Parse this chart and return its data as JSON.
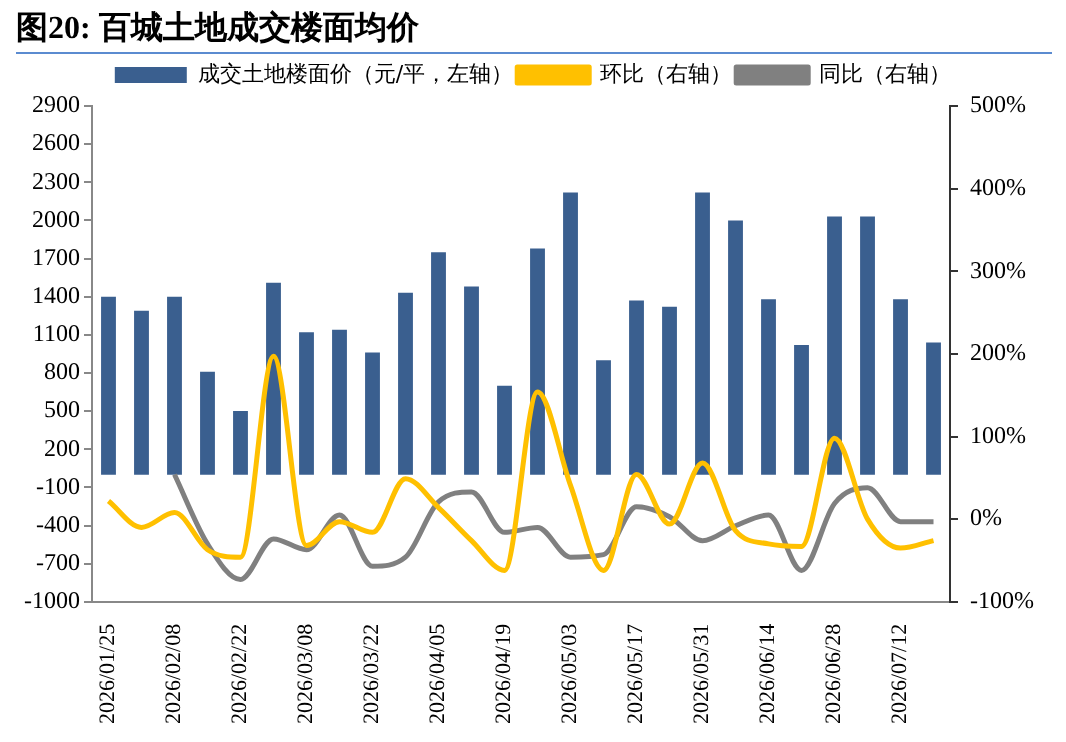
{
  "chart_data": {
    "type": "bar",
    "title": "图20: 百城土地成交楼面均价",
    "categories": [
      "2026/01/25",
      null,
      "2026/02/08",
      null,
      "2026/02/22",
      null,
      "2026/03/08",
      null,
      "2026/03/22",
      null,
      "2026/04/05",
      null,
      "2026/04/19",
      null,
      "2026/05/03",
      null,
      "2026/05/17",
      null,
      "2026/05/31",
      null,
      "2026/06/14",
      null,
      "2026/06/28",
      null,
      "2026/07/12",
      null
    ],
    "series": [
      {
        "name": "成交土地楼面价（元/平，左轴）",
        "color": "#3a5f8f",
        "values": [
          1400,
          1290,
          1400,
          810,
          500,
          1510,
          1120,
          1140,
          960,
          1430,
          1750,
          1480,
          700,
          1780,
          2220,
          900,
          1370,
          1320,
          2220,
          2000,
          1380,
          1020,
          2030,
          2030,
          1380,
          1040
        ]
      },
      {
        "name": "环比（右轴）",
        "type": "line",
        "axis": "y2",
        "color": "#ffc000",
        "values": [
          22,
          -10,
          8,
          -37,
          -46,
          197,
          -32,
          -3,
          -16,
          49,
          14,
          -26,
          -62,
          154,
          41,
          -62,
          54,
          -6,
          68,
          -14,
          -30,
          -33,
          98,
          0,
          -35,
          -26
        ]
      },
      {
        "name": "同比（右轴）",
        "type": "line",
        "axis": "y2",
        "color": "#808080",
        "values": [
          null,
          null,
          54,
          -30,
          -73,
          -24,
          -37,
          5,
          -57,
          -46,
          21,
          33,
          -16,
          -10,
          -46,
          -43,
          15,
          3,
          -26,
          -8,
          5,
          -62,
          19,
          38,
          -3,
          -3
        ]
      }
    ],
    "ylim": [
      -1000,
      2900
    ],
    "yticks": [
      -1000,
      -700,
      -400,
      -100,
      200,
      500,
      800,
      1100,
      1400,
      1700,
      2000,
      2300,
      2600,
      2900
    ],
    "y2lim": [
      -100,
      500
    ],
    "y2ticks": [
      {
        "value": -100,
        "label": "-100%"
      },
      {
        "value": 0,
        "label": "0%"
      },
      {
        "value": 100,
        "label": "100%"
      },
      {
        "value": 200,
        "label": "200%"
      },
      {
        "value": 300,
        "label": "300%"
      },
      {
        "value": 400,
        "label": "400%"
      },
      {
        "value": 500,
        "label": "500%"
      }
    ],
    "grid": false,
    "legend": "top",
    "marker": "none",
    "line_style": "solid"
  }
}
